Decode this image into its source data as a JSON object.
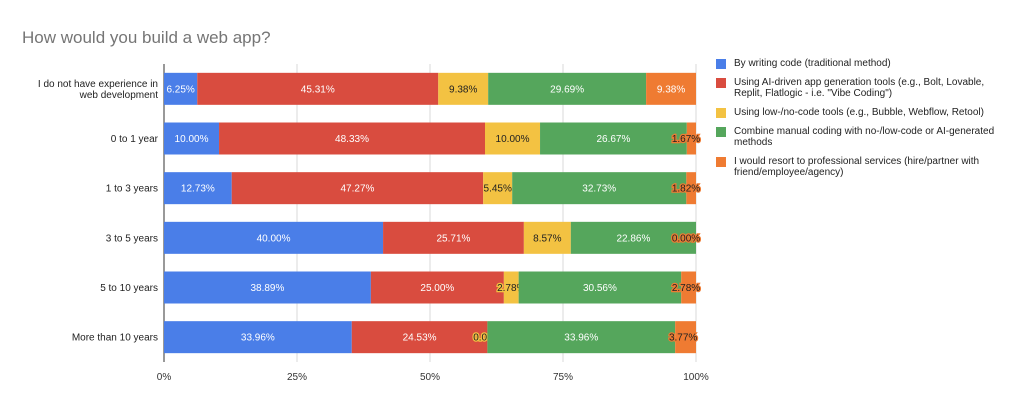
{
  "chart_data": {
    "type": "bar",
    "orientation": "horizontal",
    "stacked": "percent",
    "title": "How would you build a web app?",
    "xlabel": "",
    "ylabel": "",
    "xlim": [
      0,
      100
    ],
    "xticks": [
      "0%",
      "25%",
      "50%",
      "75%",
      "100%"
    ],
    "grid": true,
    "legend_position": "right",
    "categories": [
      "I do not have experience in web development",
      "0 to 1 year",
      "1 to 3 years",
      "3 to 5 years",
      "5 to 10 years",
      "More than 10 years"
    ],
    "series": [
      {
        "name": "By writing code (traditional method)",
        "color": "#4a7ee8",
        "values": [
          6.25,
          10.0,
          12.73,
          40.0,
          38.89,
          33.96
        ],
        "labels": [
          "6.25%",
          "10.00%",
          "12.73%",
          "40.00%",
          "38.89%",
          "33.96%"
        ]
      },
      {
        "name": "Using AI-driven app generation tools (e.g., Bolt, Lovable, Replit, Flatlogic - i.e. \"Vibe Coding\")",
        "color": "#d94c3f",
        "values": [
          45.31,
          48.33,
          47.27,
          25.71,
          25.0,
          24.53
        ],
        "labels": [
          "45.31%",
          "48.33%",
          "47.27%",
          "25.71%",
          "25.00%",
          "24.53%"
        ]
      },
      {
        "name": "Using low-/no-code tools (e.g., Bubble, Webflow, Retool)",
        "color": "#f3c242",
        "values": [
          9.38,
          10.0,
          5.45,
          8.57,
          2.78,
          0.0
        ],
        "labels": [
          "9.38%",
          "10.00%",
          "5.45%",
          "8.57%",
          "2.78%",
          "0.00%"
        ]
      },
      {
        "name": "Combine manual coding with no-/low-code or AI-generated methods",
        "color": "#55a65c",
        "values": [
          29.69,
          26.67,
          32.73,
          22.86,
          30.56,
          33.96
        ],
        "labels": [
          "29.69%",
          "26.67%",
          "32.73%",
          "22.86%",
          "30.56%",
          "33.96%"
        ]
      },
      {
        "name": "I would resort to professional services (hire/partner with friend/employee/agency)",
        "color": "#ef7b32",
        "values": [
          9.38,
          1.67,
          1.82,
          0.0,
          2.78,
          3.77
        ],
        "labels": [
          "9.38%",
          "1.67%",
          "1.82%",
          "0.00%",
          "2.78%",
          "3.77%"
        ]
      }
    ]
  }
}
